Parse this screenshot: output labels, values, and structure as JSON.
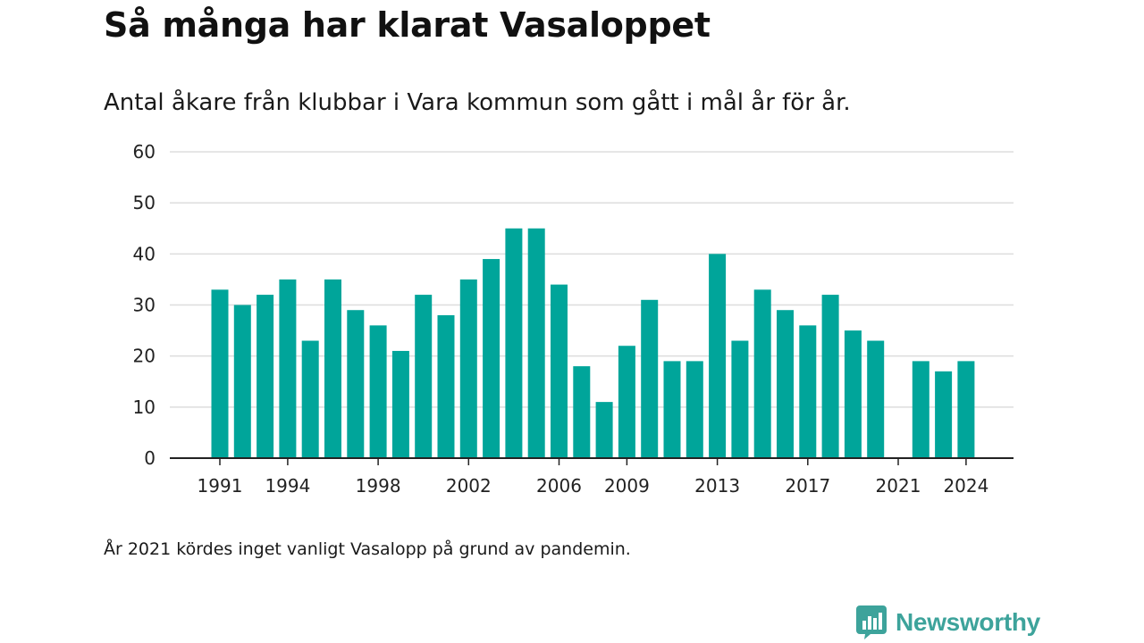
{
  "header": {
    "title": "Så många har klarat Vasaloppet",
    "subtitle": "Antal åkare från klubbar i Vara kommun som gått i mål år för år."
  },
  "footer": {
    "note": "År 2021 kördes inget vanligt Vasalopp på grund av pandemin.",
    "brand": "Newsworthy",
    "brand_icon": "newsworthy-logo-icon"
  },
  "colors": {
    "bar": "#00a59a",
    "grid": "#dddddd",
    "axis": "#222222",
    "brand": "#3da39b"
  },
  "chart_data": {
    "type": "bar",
    "title": "Så många har klarat Vasaloppet",
    "subtitle": "Antal åkare från klubbar i Vara kommun som gått i mål år för år.",
    "xlabel": "",
    "ylabel": "",
    "ylim": [
      0,
      60
    ],
    "yticks": [
      0,
      10,
      20,
      30,
      40,
      50,
      60
    ],
    "xticks": [
      1991,
      1994,
      1998,
      2002,
      2006,
      2009,
      2013,
      2017,
      2021,
      2024
    ],
    "grid": true,
    "categories": [
      1991,
      1992,
      1993,
      1994,
      1995,
      1996,
      1997,
      1998,
      1999,
      2000,
      2001,
      2002,
      2003,
      2004,
      2005,
      2006,
      2007,
      2008,
      2009,
      2010,
      2011,
      2012,
      2013,
      2014,
      2015,
      2016,
      2017,
      2018,
      2019,
      2020,
      2021,
      2022,
      2023,
      2024
    ],
    "values": [
      33,
      30,
      32,
      35,
      23,
      35,
      29,
      26,
      21,
      32,
      28,
      35,
      39,
      45,
      45,
      34,
      18,
      11,
      22,
      31,
      19,
      19,
      40,
      23,
      33,
      29,
      26,
      32,
      25,
      23,
      null,
      19,
      17,
      19
    ]
  }
}
